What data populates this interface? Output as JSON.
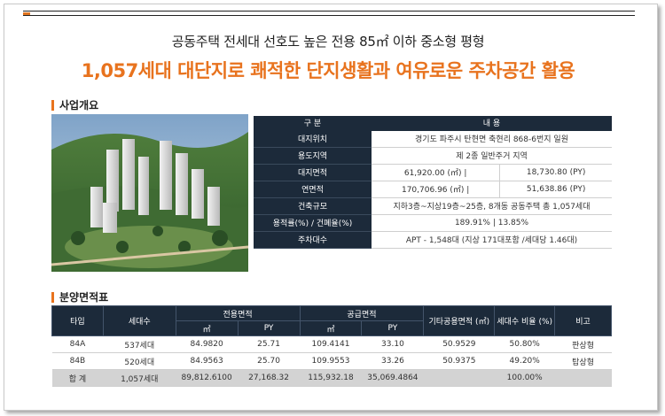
{
  "headline": "공동주택 전세대 선호도 높은 전용 85㎡ 이하 중소형 평형",
  "headline2": "1,057세대 대단지로 쾌적한 단지생활과 여유로운 주차공간 활용",
  "colors": {
    "accent": "#e8731e",
    "navy": "#1c2a3a"
  },
  "overview": {
    "title": "사업개요",
    "header": [
      "구  분",
      "내  용"
    ],
    "rows": [
      {
        "label": "대지위치",
        "value": "경기도 파주시 탄현면 축현리 868-6번지 일원"
      },
      {
        "label": "용도지역",
        "value": "제 2종 일반주거 지역"
      },
      {
        "label": "대지면적",
        "value_a": "61,920.00 (㎡)   |",
        "value_b": "18,730.80 (PY)"
      },
      {
        "label": "연면적",
        "value_a": "170,706.96 (㎡)  |",
        "value_b": "51,638.86 (PY)"
      },
      {
        "label": "건축규모",
        "value": "지하3층~지상19층~25층, 8개동 공동주택 총 1,057세대"
      },
      {
        "label": "용적률(%) / 건폐율(%)",
        "value": "189.91%   |   13.85%"
      },
      {
        "label": "주차대수",
        "value": "APT - 1,548대 (지상 171대포함 /세대당 1.46대)"
      }
    ]
  },
  "area_table": {
    "title": "분양면적표",
    "headers": {
      "type": "타입",
      "units": "세대수",
      "exclusive": "전용면적",
      "supply": "공급면적",
      "common": "기타공용면적 (㎡)",
      "ratio": "세대수 비율 (%)",
      "note": "비고",
      "sqm": "㎡",
      "py": "PY"
    },
    "rows": [
      {
        "type": "84A",
        "units": "537세대",
        "ex_sqm": "84.9820",
        "ex_py": "25.71",
        "sup_sqm": "109.4141",
        "sup_py": "33.10",
        "common": "50.9529",
        "ratio": "50.80%",
        "note": "판상형"
      },
      {
        "type": "84B",
        "units": "520세대",
        "ex_sqm": "84.9563",
        "ex_py": "25.70",
        "sup_sqm": "109.9553",
        "sup_py": "33.26",
        "common": "50.9375",
        "ratio": "49.20%",
        "note": "탑상형"
      }
    ],
    "total": {
      "type": "합 계",
      "units": "1,057세대",
      "ex_sqm": "89,812.6100",
      "ex_py": "27,168.32",
      "sup_sqm": "115,932.18",
      "sup_py": "35,069.4864",
      "common": "",
      "ratio": "100.00%",
      "note": ""
    }
  }
}
